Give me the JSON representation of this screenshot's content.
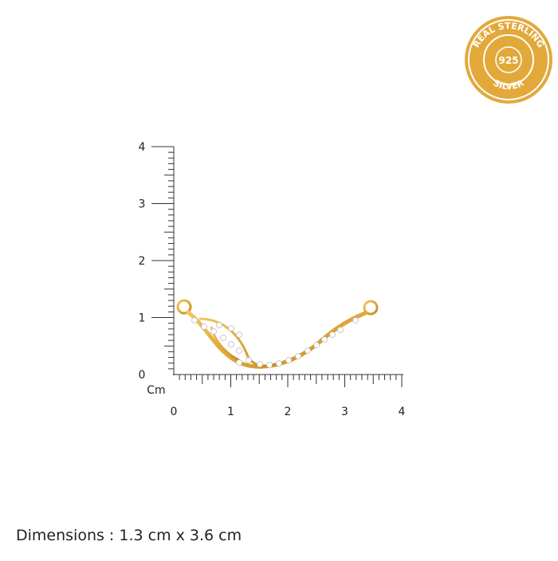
{
  "badge": {
    "top_text": "REAL STERLING",
    "center_text": "925",
    "bottom_text": "SILVER"
  },
  "ruler": {
    "y_labels": [
      "4",
      "3",
      "2",
      "1",
      "0"
    ],
    "x_labels": [
      "0",
      "1",
      "2",
      "3",
      "4"
    ],
    "unit": "Cm"
  },
  "caption": "Dimensions : 1.3 cm x 3.6 cm"
}
